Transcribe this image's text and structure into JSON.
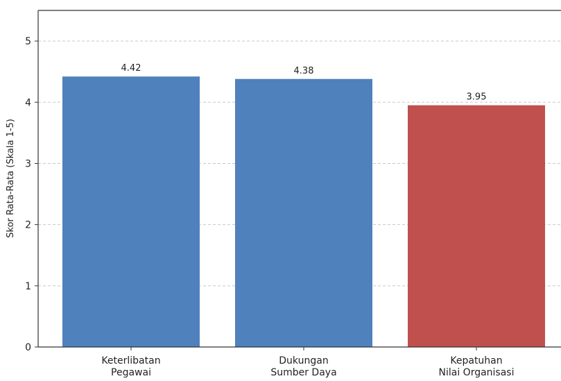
{
  "chart_data": {
    "type": "bar",
    "title": "",
    "xlabel": "",
    "ylabel": "Skor Rata-Rata (Skala 1-5)",
    "ylim": [
      0,
      5.5
    ],
    "yticks": [
      "0",
      "1",
      "2",
      "3",
      "4",
      "5"
    ],
    "grid": true,
    "categories": [
      [
        "Keterlibatan",
        "Pegawai"
      ],
      [
        "Dukungan",
        "Sumber Daya"
      ],
      [
        "Kepatuhan",
        "Nilai Organisasi"
      ]
    ],
    "values": [
      4.42,
      4.38,
      3.95
    ],
    "value_labels": [
      "4.42",
      "4.38",
      "3.95"
    ],
    "bar_colors": [
      "#4f81bd",
      "#4f81bd",
      "#c0504d"
    ]
  }
}
